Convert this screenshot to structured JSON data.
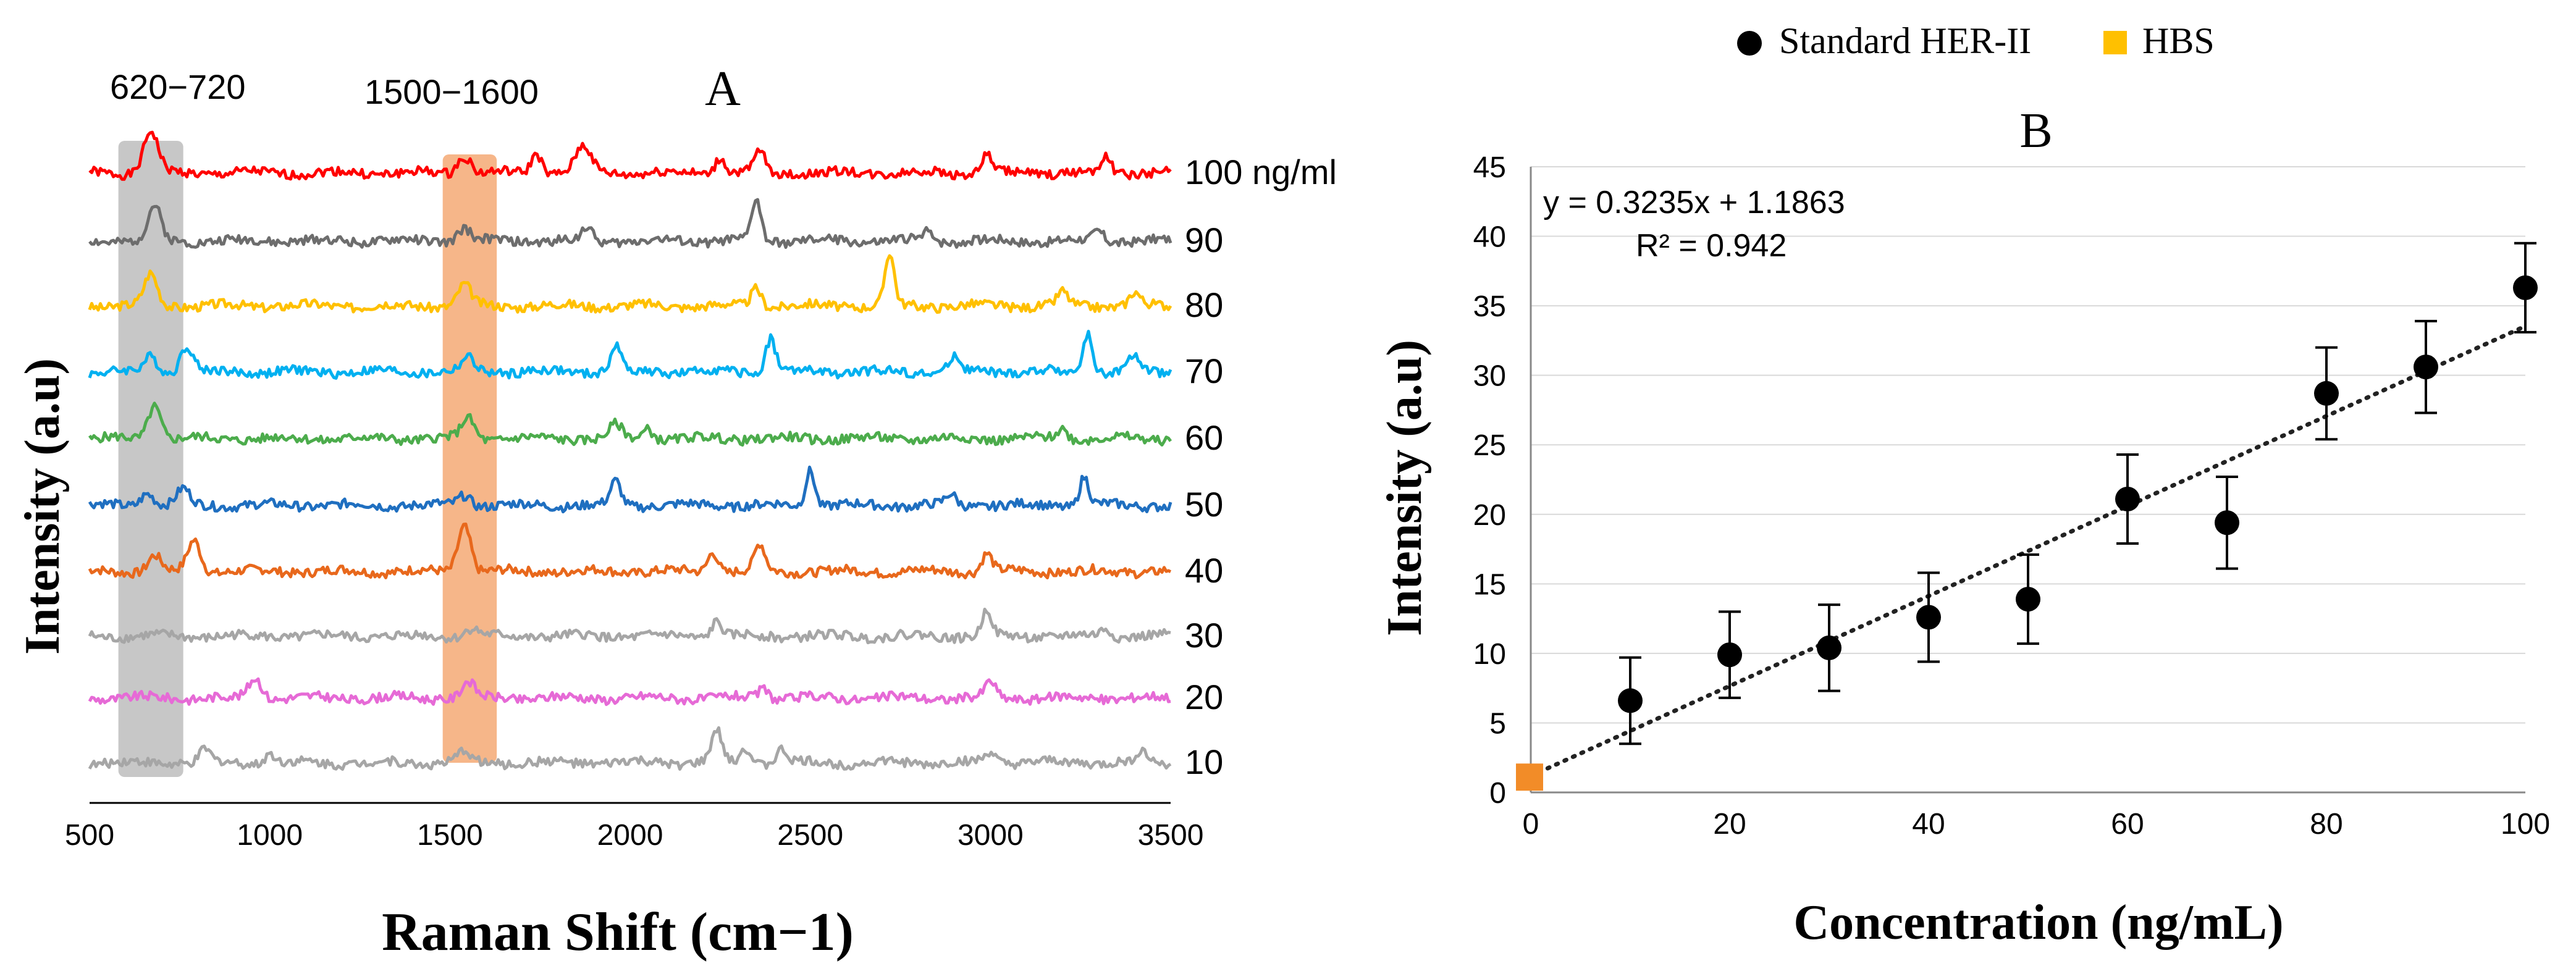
{
  "chart_data": [
    {
      "panel": "A",
      "type": "line",
      "title": "A",
      "xlabel": "Raman Shift (cm−1)",
      "ylabel": "Intensity (a.u)",
      "xlim": [
        500,
        3500
      ],
      "xticks": [
        "500",
        "1000",
        "1500",
        "2000",
        "2500",
        "3000",
        "3500"
      ],
      "highlight_bands": [
        {
          "label": "620−720",
          "range": [
            580,
            760
          ],
          "color": "#bdbdbd"
        },
        {
          "label": "1500−1600",
          "range": [
            1480,
            1630
          ],
          "color": "#f4a46c"
        }
      ],
      "series": [
        {
          "name": "100 ng/ml",
          "color": "#ff0000",
          "seed": 1,
          "peaks": [
            [
              670,
              1.6,
              28
            ],
            [
              1540,
              0.7,
              25
            ],
            [
              1740,
              0.8,
              20
            ],
            [
              1870,
              1.0,
              30
            ],
            [
              2250,
              0.6,
              20
            ],
            [
              2360,
              0.8,
              20
            ],
            [
              2990,
              0.7,
              20
            ],
            [
              3320,
              0.6,
              20
            ]
          ]
        },
        {
          "name": "90",
          "color": "#6d6d6d",
          "seed": 2,
          "peaks": [
            [
              680,
              1.3,
              25
            ],
            [
              1540,
              0.5,
              25
            ],
            [
              1880,
              0.5,
              20
            ],
            [
              2350,
              1.6,
              18
            ],
            [
              2830,
              0.4,
              20
            ],
            [
              3300,
              0.4,
              20
            ]
          ]
        },
        {
          "name": "80",
          "color": "#ffc000",
          "seed": 3,
          "peaks": [
            [
              670,
              1.2,
              25
            ],
            [
              1540,
              0.8,
              25
            ],
            [
              2350,
              0.7,
              20
            ],
            [
              2720,
              2.0,
              18
            ],
            [
              3200,
              0.5,
              20
            ],
            [
              3400,
              0.5,
              20
            ]
          ]
        },
        {
          "name": "70",
          "color": "#00b0f0",
          "seed": 4,
          "peaks": [
            [
              670,
              0.6,
              25
            ],
            [
              770,
              1.0,
              25
            ],
            [
              1550,
              0.5,
              25
            ],
            [
              1960,
              1.0,
              20
            ],
            [
              2390,
              1.3,
              20
            ],
            [
              2900,
              0.6,
              20
            ],
            [
              3270,
              1.5,
              18
            ],
            [
              3400,
              0.6,
              20
            ]
          ]
        },
        {
          "name": "60",
          "color": "#4cac4c",
          "seed": 5,
          "peaks": [
            [
              680,
              1.3,
              25
            ],
            [
              1550,
              0.8,
              25
            ],
            [
              1960,
              0.5,
              25
            ],
            [
              2050,
              0.4,
              20
            ],
            [
              3200,
              0.4,
              20
            ]
          ]
        },
        {
          "name": "50",
          "color": "#1f6fc0",
          "seed": 6,
          "peaks": [
            [
              660,
              0.5,
              25
            ],
            [
              760,
              0.6,
              25
            ],
            [
              1540,
              0.4,
              25
            ],
            [
              1960,
              0.9,
              20
            ],
            [
              2500,
              1.4,
              18
            ],
            [
              2890,
              0.4,
              20
            ],
            [
              3260,
              1.1,
              18
            ]
          ]
        },
        {
          "name": "40",
          "color": "#e8681c",
          "seed": 7,
          "peaks": [
            [
              680,
              0.6,
              25
            ],
            [
              790,
              1.2,
              25
            ],
            [
              1540,
              1.8,
              25
            ],
            [
              2230,
              0.8,
              20
            ],
            [
              2360,
              1.0,
              20
            ],
            [
              2990,
              0.7,
              20
            ]
          ]
        },
        {
          "name": "30",
          "color": "#a6a6a6",
          "seed": 8,
          "peaks": [
            [
              1560,
              0.3,
              25
            ],
            [
              2240,
              0.6,
              20
            ],
            [
              2990,
              1.0,
              18
            ],
            [
              3320,
              0.3,
              20
            ]
          ]
        },
        {
          "name": "20",
          "color": "#e66ad6",
          "seed": 9,
          "peaks": [
            [
              960,
              0.8,
              25
            ],
            [
              1550,
              0.6,
              25
            ],
            [
              2370,
              0.4,
              20
            ],
            [
              3000,
              0.6,
              20
            ]
          ]
        },
        {
          "name": "10",
          "color": "#a6a6a6",
          "seed": 10,
          "peaks": [
            [
              820,
              0.5,
              20
            ],
            [
              1000,
              0.4,
              20
            ],
            [
              1540,
              0.4,
              25
            ],
            [
              2240,
              1.2,
              20
            ],
            [
              2320,
              0.6,
              20
            ],
            [
              2420,
              0.5,
              20
            ],
            [
              3000,
              0.4,
              20
            ],
            [
              3420,
              0.4,
              20
            ]
          ]
        }
      ]
    },
    {
      "panel": "B",
      "type": "scatter",
      "title": "B",
      "xlabel": "Concentration (ng/mL)",
      "ylabel": "Intensity (a.u)",
      "xlim": [
        0,
        100
      ],
      "ylim": [
        0,
        45
      ],
      "xticks": [
        0,
        20,
        40,
        60,
        80,
        100
      ],
      "yticks": [
        0,
        5,
        10,
        15,
        20,
        25,
        30,
        35,
        40,
        45
      ],
      "legend": [
        "Standard HER-II",
        "HBS"
      ],
      "legend_position": "top",
      "equation": "y = 0.3235x + 1.1863",
      "r_squared": "R² = 0.942",
      "trendline": {
        "slope": 0.3235,
        "intercept": 1.1863,
        "style": "dotted"
      },
      "series": [
        {
          "name": "Standard HER-II",
          "color": "#000000",
          "x": [
            10,
            20,
            30,
            40,
            50,
            60,
            70,
            80,
            90,
            100
          ],
          "y": [
            6.6,
            9.9,
            10.4,
            12.6,
            13.9,
            21.1,
            19.4,
            28.7,
            30.6,
            36.3
          ],
          "err": [
            3.1,
            3.1,
            3.1,
            3.2,
            3.2,
            3.2,
            3.3,
            3.3,
            3.3,
            3.2
          ]
        },
        {
          "name": "HBS",
          "color": "#f28c28",
          "x": [
            0
          ],
          "y": [
            1.1
          ]
        }
      ]
    }
  ]
}
